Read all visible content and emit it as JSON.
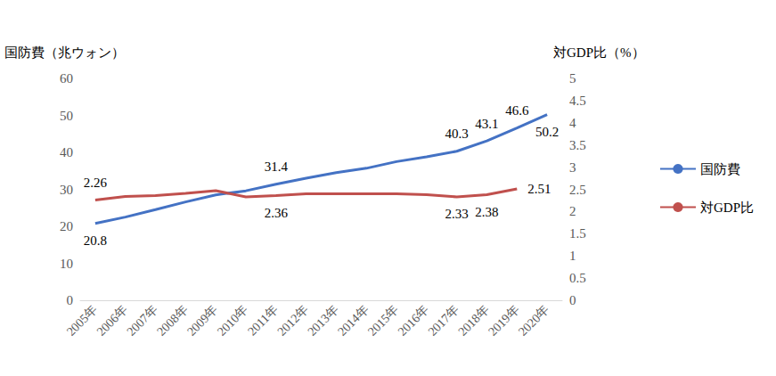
{
  "chart_data": {
    "type": "line",
    "categories": [
      "2005年",
      "2006年",
      "2007年",
      "2008年",
      "2009年",
      "2010年",
      "2011年",
      "2012年",
      "2013年",
      "2014年",
      "2015年",
      "2016年",
      "2017年",
      "2018年",
      "2019年",
      "2020年"
    ],
    "y_label": "国防費（兆ウォン）",
    "y2_label": "対GDP比（%）",
    "ylim": [
      0,
      60
    ],
    "yticks": [
      0,
      10,
      20,
      30,
      40,
      50,
      60
    ],
    "y2lim": [
      0,
      5
    ],
    "y2ticks": [
      0,
      0.5,
      1,
      1.5,
      2,
      2.5,
      3,
      3.5,
      4,
      4.5,
      5
    ],
    "grid": false,
    "legend": "right",
    "data_labels": true,
    "series": [
      {
        "name": "国防費",
        "color": "#4472c4",
        "marker": "none",
        "line_style": "solid",
        "values": [
          20.8,
          22.5,
          24.5,
          26.6,
          28.5,
          29.6,
          31.4,
          33.0,
          34.5,
          35.7,
          37.5,
          38.8,
          40.3,
          43.1,
          46.6,
          50.2
        ],
        "value_labels": [
          "20.8",
          null,
          null,
          null,
          null,
          null,
          "31.4",
          null,
          null,
          null,
          null,
          null,
          "40.3",
          "43.1",
          "46.6",
          "50.2"
        ]
      },
      {
        "name": "対GDP比",
        "color": "#c0504d",
        "marker": "none",
        "line_style": "solid",
        "axis": "y2",
        "values": [
          2.26,
          2.34,
          2.36,
          2.41,
          2.47,
          2.33,
          2.36,
          2.4,
          2.4,
          2.4,
          2.4,
          2.38,
          2.33,
          2.38,
          2.51,
          null
        ],
        "value_labels": [
          "2.26",
          null,
          null,
          null,
          null,
          null,
          "2.36",
          null,
          null,
          null,
          null,
          null,
          "2.33",
          "2.38",
          "2.51",
          null
        ]
      }
    ]
  }
}
